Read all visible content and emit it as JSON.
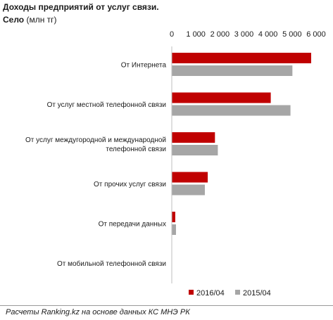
{
  "header": {
    "title": "Доходы предприятий от услуг связи.",
    "subtitle_bold": "Село",
    "subtitle_rest": " (млн тг)"
  },
  "footer": {
    "source": "Расчеты Ranking.kz на основе данных КС МНЭ РК"
  },
  "chart_data": {
    "type": "bar",
    "orientation": "horizontal",
    "title": "Доходы предприятий от услуг связи.",
    "subtitle": "Село (млн тг)",
    "categories": [
      [
        "От Интернета"
      ],
      [
        "От услуг местной телефонной связи"
      ],
      [
        "От услуг междугородной и международной",
        "телефонной связи"
      ],
      [
        "От прочих услуг связи"
      ],
      [
        "От передачи данных"
      ],
      [
        "От мобильной телефонной связи"
      ]
    ],
    "series": [
      {
        "name": "2016/04",
        "color": "#c00000",
        "values": [
          5780,
          4100,
          1780,
          1480,
          130,
          0
        ]
      },
      {
        "name": "2015/04",
        "color": "#a6a6a6",
        "values": [
          5000,
          4920,
          1900,
          1360,
          160,
          0
        ]
      }
    ],
    "x_ticks": [
      0,
      1000,
      2000,
      3000,
      4000,
      5000,
      6000
    ],
    "x_tick_labels": [
      "0",
      "1 000",
      "2 000",
      "3 000",
      "4 000",
      "5 000",
      "6 000"
    ],
    "xlim": [
      0,
      6000
    ],
    "axis_position": "top",
    "legend_position": "bottom",
    "grid": false
  }
}
